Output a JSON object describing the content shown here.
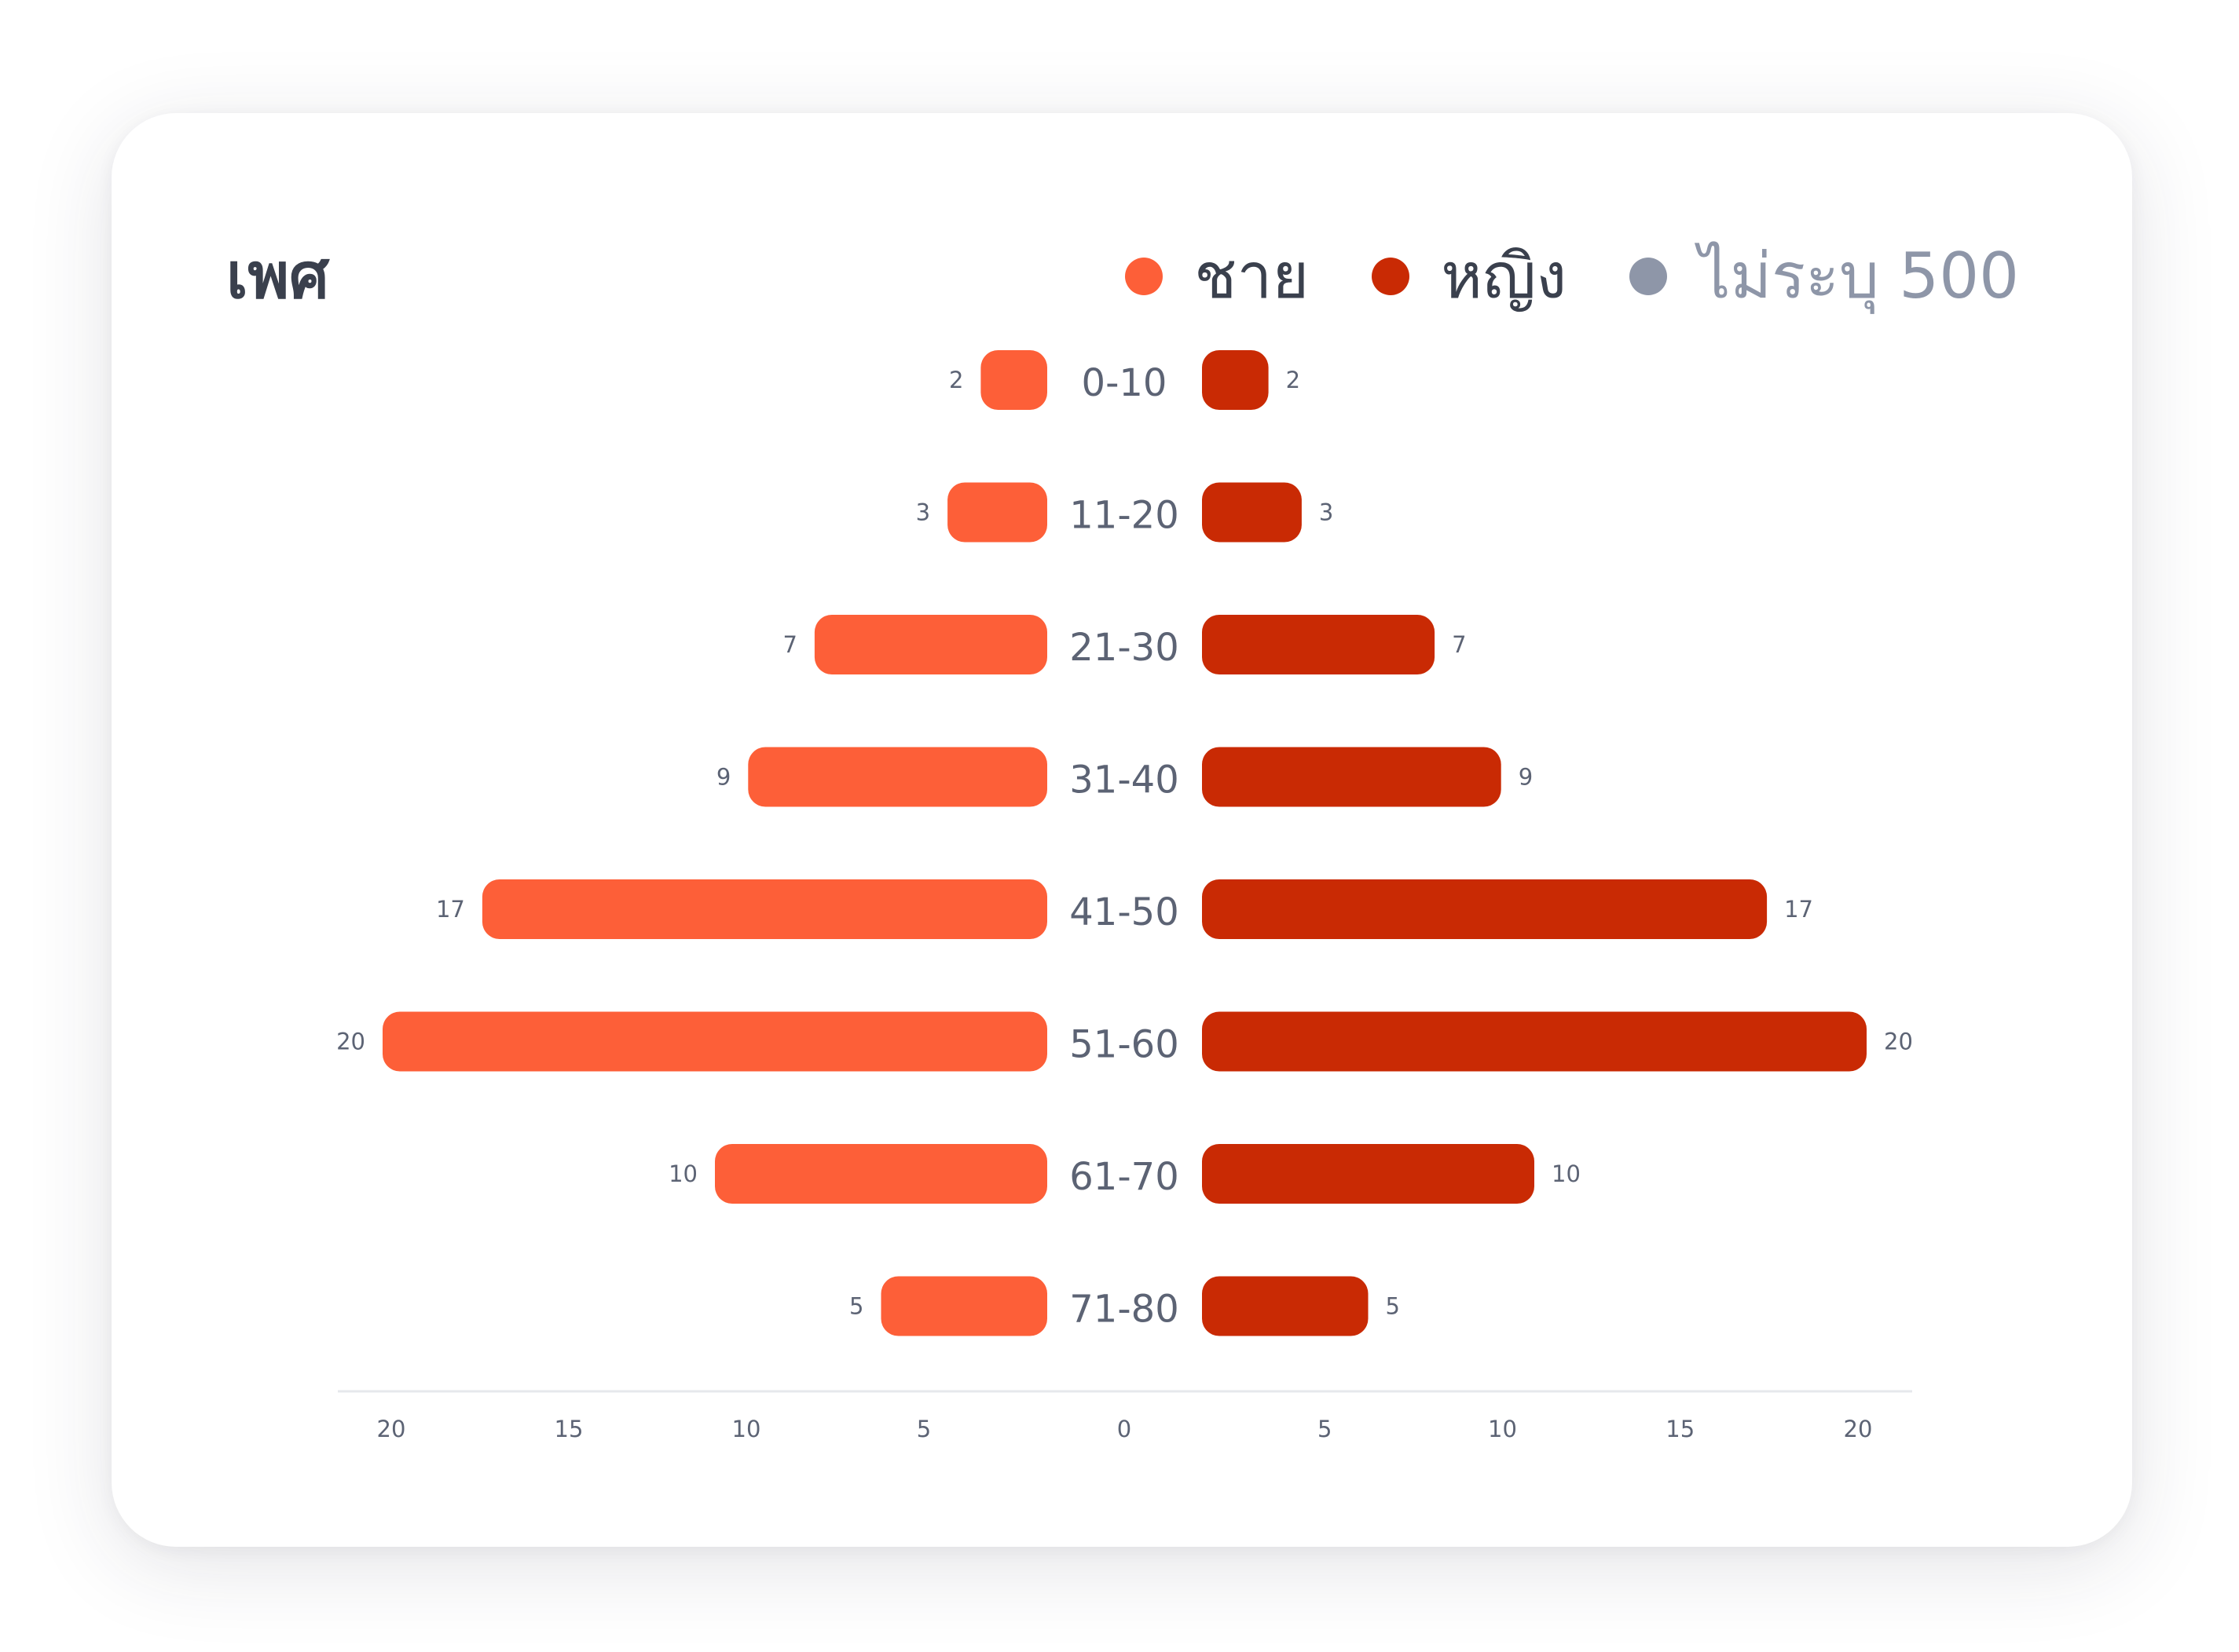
{
  "title": "เพศ",
  "legend": [
    {
      "label": "ชาย",
      "color": "#fd5f38",
      "text_color": "#3a404d"
    },
    {
      "label": "หญิง",
      "color": "#c92a04",
      "text_color": "#3a404d"
    },
    {
      "label": "ไม่ระบุ 500",
      "color": "#8e96a8",
      "text_color": "#8e96a8"
    }
  ],
  "colors": {
    "male": "#fd5f38",
    "female": "#c92a04",
    "text": "#5c6374",
    "axis_line": "#e6e8ec"
  },
  "chart_data": {
    "type": "bar",
    "orientation": "horizontal-population-pyramid",
    "categories": [
      "0-10",
      "11-20",
      "21-30",
      "31-40",
      "41-50",
      "51-60",
      "61-70",
      "71-80"
    ],
    "series": [
      {
        "name": "ชาย",
        "values": [
          2,
          3,
          7,
          9,
          17,
          20,
          10,
          5
        ]
      },
      {
        "name": "หญิง",
        "values": [
          2,
          3,
          7,
          9,
          17,
          20,
          10,
          5
        ]
      }
    ],
    "xlim": [
      0,
      20
    ],
    "x_ticks_left": [
      "20",
      "15",
      "10",
      "5"
    ],
    "x_tick_center": "0",
    "x_ticks_right": [
      "5",
      "10",
      "15",
      "20"
    ],
    "grid": false,
    "legend_position": "top-right"
  }
}
